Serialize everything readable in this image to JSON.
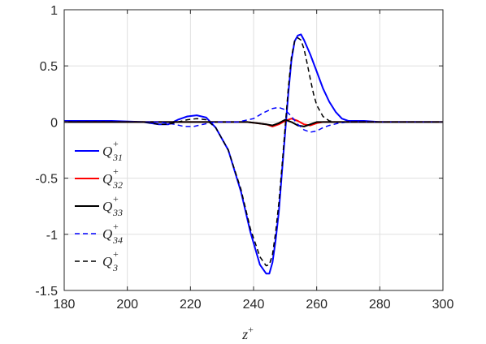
{
  "chart_data": {
    "type": "line",
    "title": "",
    "xlabel": "z",
    "xlabel_sup": "+",
    "ylabel": "",
    "xlim": [
      180,
      300
    ],
    "ylim": [
      -1.5,
      1
    ],
    "xticks": [
      "180",
      "200",
      "220",
      "240",
      "260",
      "280",
      "300"
    ],
    "yticks": [
      "1",
      "0.5",
      "0",
      "-0.5",
      "-1",
      "-1.5"
    ],
    "grid": true,
    "legend_position": "left",
    "series": [
      {
        "name": "Q31",
        "label_main": "Q",
        "label_sup": "+",
        "label_sub": "31",
        "color": "#0000ff",
        "dash": "solid",
        "x": [
          180,
          195,
          205,
          210,
          213,
          216,
          219,
          222,
          225,
          228,
          232,
          236,
          239,
          242,
          244,
          245,
          246,
          247,
          248,
          249,
          250,
          251,
          252,
          253,
          254,
          255,
          256,
          258,
          260,
          262,
          264,
          266,
          268,
          270,
          272,
          275,
          280,
          290,
          300
        ],
        "y": [
          0.01,
          0.01,
          0.0,
          -0.02,
          -0.02,
          0.02,
          0.05,
          0.06,
          0.04,
          -0.05,
          -0.25,
          -0.62,
          -0.98,
          -1.27,
          -1.35,
          -1.35,
          -1.25,
          -1.05,
          -0.8,
          -0.45,
          -0.1,
          0.25,
          0.55,
          0.72,
          0.77,
          0.78,
          0.73,
          0.6,
          0.45,
          0.3,
          0.18,
          0.09,
          0.03,
          0.01,
          0.01,
          0.01,
          0.0,
          0.0,
          0.0
        ]
      },
      {
        "name": "Q32",
        "label_main": "Q",
        "label_sup": "+",
        "label_sub": "32",
        "color": "#ff0000",
        "dash": "solid",
        "x": [
          180,
          230,
          238,
          241,
          244,
          246,
          248,
          250,
          252,
          254,
          256,
          258,
          260,
          262,
          265,
          300
        ],
        "y": [
          0.0,
          0.0,
          0.0,
          -0.01,
          -0.02,
          -0.04,
          -0.02,
          0.01,
          0.03,
          0.01,
          -0.02,
          -0.03,
          -0.01,
          0.0,
          0.0,
          0.0
        ]
      },
      {
        "name": "Q33",
        "label_main": "Q",
        "label_sup": "+",
        "label_sub": "33",
        "color": "#000000",
        "dash": "solid",
        "x": [
          180,
          230,
          238,
          241,
          244,
          246,
          248,
          250,
          252,
          254,
          256,
          258,
          260,
          262,
          265,
          300
        ],
        "y": [
          0.0,
          0.0,
          0.0,
          -0.01,
          -0.02,
          -0.03,
          -0.01,
          0.02,
          0.0,
          -0.03,
          -0.04,
          -0.02,
          0.0,
          0.0,
          0.0,
          0.0
        ]
      },
      {
        "name": "Q34",
        "label_main": "Q",
        "label_sup": "+",
        "label_sub": "34",
        "color": "#0000ff",
        "dash": "dashed",
        "x": [
          180,
          210,
          215,
          218,
          221,
          224,
          228,
          235,
          240,
          243,
          246,
          248,
          250,
          252,
          254,
          256,
          258,
          260,
          262,
          264,
          267,
          270,
          280,
          300
        ],
        "y": [
          0.0,
          0.0,
          -0.02,
          -0.04,
          -0.04,
          -0.02,
          0.0,
          0.0,
          0.03,
          0.08,
          0.12,
          0.13,
          0.11,
          0.05,
          -0.02,
          -0.07,
          -0.09,
          -0.08,
          -0.05,
          -0.03,
          -0.01,
          0.0,
          0.0,
          0.0
        ]
      },
      {
        "name": "Q3",
        "label_main": "Q",
        "label_sup": "+",
        "label_sub": "3",
        "color": "#000000",
        "dash": "dashed",
        "x": [
          180,
          195,
          205,
          210,
          213,
          216,
          219,
          222,
          225,
          228,
          232,
          236,
          239,
          242,
          244,
          245,
          246,
          247,
          248,
          249,
          250,
          251,
          252,
          253,
          254,
          255,
          256,
          257,
          258,
          259,
          260,
          262,
          264,
          266,
          268,
          270,
          275,
          280,
          290,
          300
        ],
        "y": [
          0.0,
          0.0,
          0.0,
          -0.02,
          -0.02,
          0.0,
          0.02,
          0.03,
          0.02,
          -0.05,
          -0.25,
          -0.6,
          -0.95,
          -1.2,
          -1.28,
          -1.27,
          -1.18,
          -0.98,
          -0.72,
          -0.4,
          -0.05,
          0.3,
          0.58,
          0.72,
          0.75,
          0.73,
          0.65,
          0.52,
          0.38,
          0.25,
          0.15,
          0.05,
          0.01,
          0.0,
          0.0,
          0.0,
          0.0,
          0.0,
          0.0,
          0.0
        ]
      }
    ]
  }
}
